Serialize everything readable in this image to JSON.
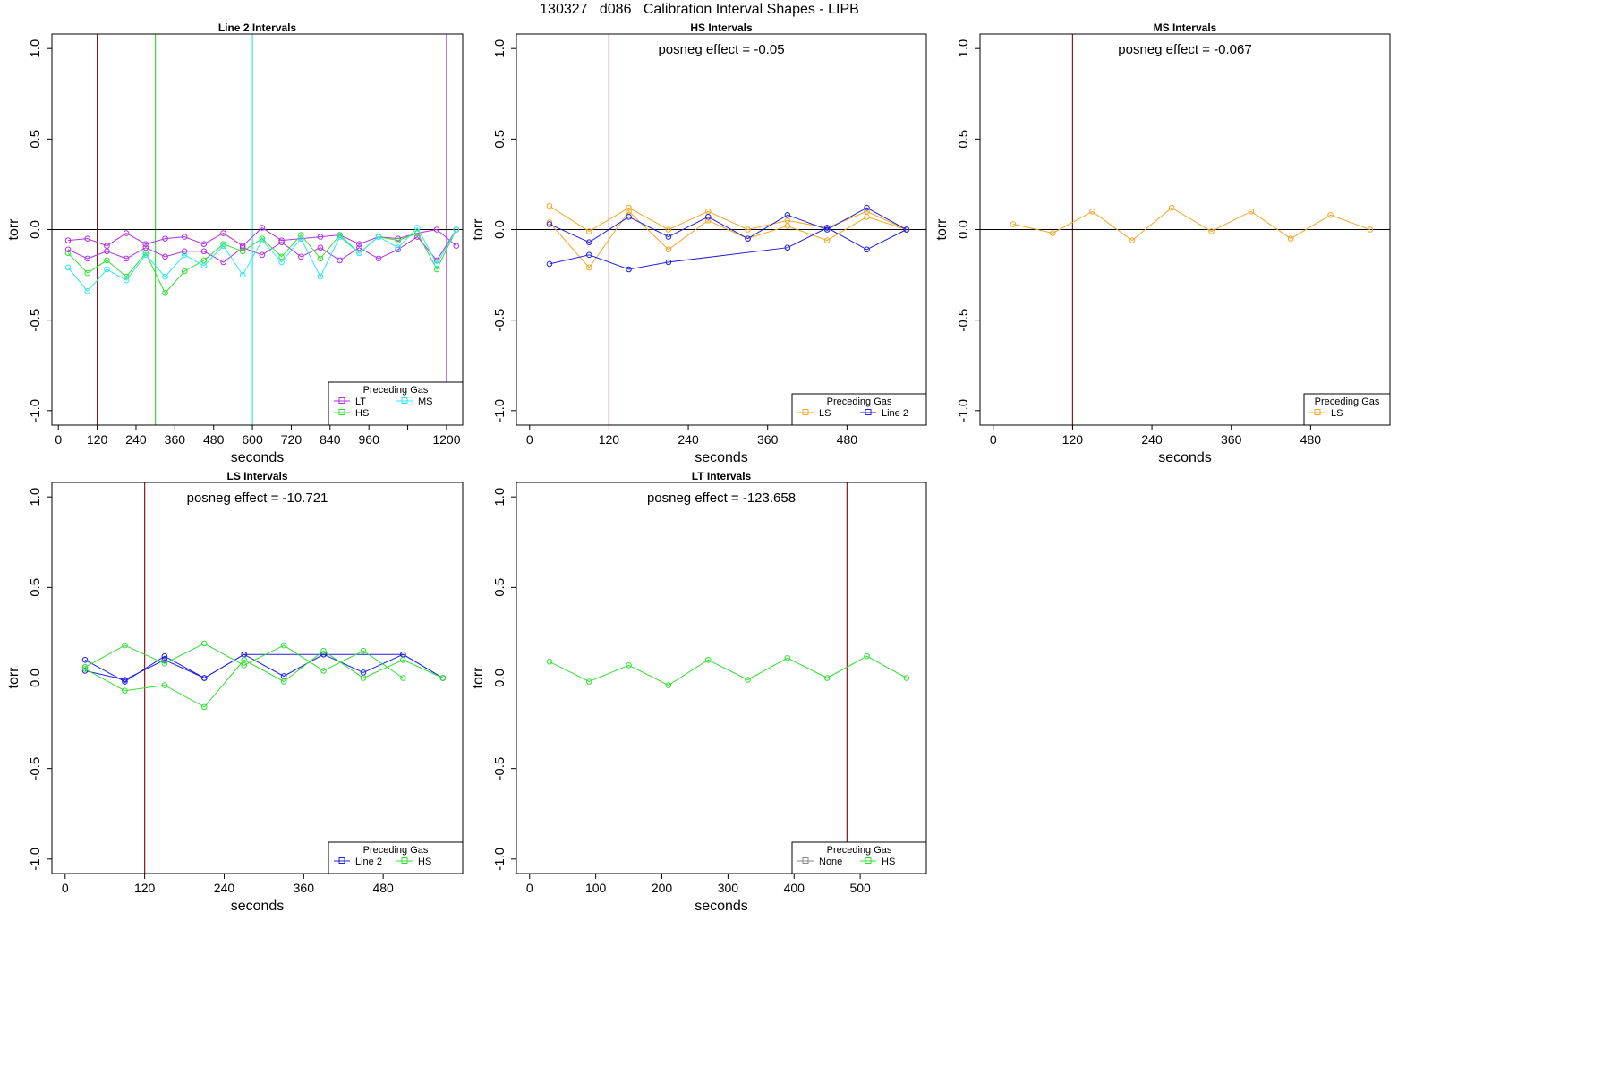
{
  "figure_title": "130327   d086   Calibration Interval Shapes - LIPB",
  "colors": {
    "LT": "#b030e0",
    "HS": "#30e030",
    "MS": "#30e8e8",
    "LS": "#f5a623",
    "Line 2": "#2020e0",
    "None": "#888888",
    "vline": "#8b1a1a",
    "zero": "#000000"
  },
  "chart_data": [
    {
      "type": "line",
      "title": "Line 2 Intervals",
      "annotation": "",
      "xlabel": "seconds",
      "ylabel": "torr",
      "xlim": [
        -20,
        1250
      ],
      "ylim": [
        -1.08,
        1.08
      ],
      "xticks": [
        0,
        120,
        240,
        360,
        480,
        600,
        720,
        840,
        960,
        1080,
        1200
      ],
      "xtick_labels": [
        "0",
        "120",
        "240",
        "360",
        "480",
        "600",
        "720",
        "840",
        "960",
        "",
        "1200"
      ],
      "yticks": [
        -1.0,
        -0.5,
        0.0,
        0.5,
        1.0
      ],
      "ytick_labels": [
        "-1.0",
        "-0.5",
        "0.0",
        "0.5",
        "1.0"
      ],
      "vlines": [
        {
          "x": 120,
          "color": "#8b1a1a"
        },
        {
          "x": 300,
          "color": "#30e030"
        },
        {
          "x": 600,
          "color": "#30e8e8"
        },
        {
          "x": 1200,
          "color": "#b030e0"
        }
      ],
      "legend": {
        "title": "Preceding Gas",
        "position": "bottom-right",
        "entries": [
          [
            "LT",
            "MS"
          ],
          [
            "HS"
          ]
        ]
      },
      "series": [
        {
          "name": "LT",
          "x": [
            30,
            90,
            150,
            210,
            270,
            330,
            390,
            450,
            510,
            570,
            630,
            690,
            750,
            810,
            870,
            930,
            990,
            1050,
            1110,
            1170,
            1230
          ],
          "y": [
            -0.06,
            -0.05,
            -0.09,
            -0.02,
            -0.08,
            -0.05,
            -0.04,
            -0.08,
            -0.02,
            -0.09,
            0.01,
            -0.06,
            -0.05,
            -0.04,
            -0.03,
            -0.08,
            -0.04,
            -0.05,
            -0.02,
            0.0,
            -0.09
          ]
        },
        {
          "name": "LT",
          "x": [
            30,
            90,
            150,
            210,
            270,
            330,
            390,
            450,
            510,
            570,
            630,
            690,
            750,
            810,
            870,
            930,
            990,
            1050,
            1110,
            1170,
            1230
          ],
          "y": [
            -0.11,
            -0.16,
            -0.12,
            -0.16,
            -0.1,
            -0.15,
            -0.12,
            -0.12,
            -0.18,
            -0.1,
            -0.14,
            -0.07,
            -0.15,
            -0.1,
            -0.17,
            -0.1,
            -0.16,
            -0.11,
            -0.04,
            -0.17,
            0.0
          ]
        },
        {
          "name": "HS",
          "x": [
            30,
            90,
            150,
            210,
            270,
            330,
            390,
            450,
            510,
            570,
            630,
            690,
            750,
            810,
            870,
            930,
            990,
            1050,
            1110,
            1170,
            1230
          ],
          "y": [
            -0.13,
            -0.24,
            -0.17,
            -0.26,
            -0.13,
            -0.35,
            -0.23,
            -0.17,
            -0.08,
            -0.12,
            -0.05,
            -0.15,
            -0.03,
            -0.16,
            -0.03,
            -0.13,
            -0.04,
            -0.06,
            -0.02,
            -0.22,
            0.0
          ]
        },
        {
          "name": "MS",
          "x": [
            30,
            90,
            150,
            210,
            270,
            330,
            390,
            450,
            510,
            570,
            630,
            690,
            750,
            810,
            870,
            930,
            990,
            1050,
            1110,
            1170,
            1230
          ],
          "y": [
            -0.21,
            -0.34,
            -0.22,
            -0.28,
            -0.14,
            -0.26,
            -0.14,
            -0.2,
            -0.09,
            -0.25,
            -0.06,
            -0.18,
            -0.05,
            -0.26,
            -0.04,
            -0.13,
            -0.04,
            -0.1,
            0.01,
            -0.19,
            0.0
          ]
        }
      ]
    },
    {
      "type": "line",
      "title": "HS Intervals",
      "annotation": "posneg effect = -0.05",
      "xlabel": "seconds",
      "ylabel": "torr",
      "xlim": [
        -20,
        600
      ],
      "ylim": [
        -1.08,
        1.08
      ],
      "xticks": [
        0,
        120,
        240,
        360,
        480
      ],
      "xtick_labels": [
        "0",
        "120",
        "240",
        "360",
        "480"
      ],
      "yticks": [
        -1.0,
        -0.5,
        0.0,
        0.5,
        1.0
      ],
      "ytick_labels": [
        "-1.0",
        "-0.5",
        "0.0",
        "0.5",
        "1.0"
      ],
      "vlines": [
        {
          "x": 120,
          "color": "#8b1a1a"
        }
      ],
      "legend": {
        "title": "Preceding Gas",
        "position": "bottom-right",
        "entries": [
          [
            "LS",
            "Line 2"
          ]
        ]
      },
      "series": [
        {
          "name": "LS",
          "x": [
            30,
            90,
            150,
            210,
            270,
            330,
            390,
            450,
            510,
            570
          ],
          "y": [
            0.13,
            -0.01,
            0.12,
            0.0,
            0.1,
            0.0,
            0.05,
            0.01,
            0.1,
            0.0
          ]
        },
        {
          "name": "LS",
          "x": [
            30,
            90,
            150,
            210,
            270,
            330,
            390,
            450,
            510,
            570
          ],
          "y": [
            0.04,
            -0.21,
            0.1,
            -0.11,
            0.05,
            -0.05,
            0.02,
            -0.06,
            0.07,
            0.0
          ]
        },
        {
          "name": "Line 2",
          "x": [
            30,
            90,
            150,
            210,
            270,
            330,
            390,
            450,
            510,
            570
          ],
          "y": [
            0.03,
            -0.07,
            0.07,
            -0.04,
            0.07,
            -0.05,
            0.08,
            0.0,
            0.12,
            0.0
          ]
        },
        {
          "name": "Line 2",
          "x": [
            30,
            90,
            150,
            210,
            390,
            450,
            510,
            570
          ],
          "y": [
            -0.19,
            -0.14,
            -0.22,
            -0.18,
            -0.1,
            0.01,
            -0.11,
            0.0
          ]
        }
      ]
    },
    {
      "type": "line",
      "title": "MS Intervals",
      "annotation": "posneg effect = -0.067",
      "xlabel": "seconds",
      "ylabel": "torr",
      "xlim": [
        -20,
        600
      ],
      "ylim": [
        -1.08,
        1.08
      ],
      "xticks": [
        0,
        120,
        240,
        360,
        480
      ],
      "xtick_labels": [
        "0",
        "120",
        "240",
        "360",
        "480"
      ],
      "yticks": [
        -1.0,
        -0.5,
        0.0,
        0.5,
        1.0
      ],
      "ytick_labels": [
        "-1.0",
        "-0.5",
        "0.0",
        "0.5",
        "1.0"
      ],
      "vlines": [
        {
          "x": 120,
          "color": "#8b1a1a"
        }
      ],
      "legend": {
        "title": "Preceding Gas",
        "position": "bottom-right",
        "entries": [
          [
            "LS"
          ]
        ]
      },
      "series": [
        {
          "name": "LS",
          "x": [
            30,
            90,
            150,
            210,
            270,
            330,
            390,
            450,
            510,
            570
          ],
          "y": [
            0.03,
            -0.02,
            0.1,
            -0.06,
            0.12,
            -0.01,
            0.1,
            -0.05,
            0.08,
            0.0
          ]
        }
      ]
    },
    {
      "type": "line",
      "title": "LS Intervals",
      "annotation": "posneg effect = -10.721",
      "xlabel": "seconds",
      "ylabel": "torr",
      "xlim": [
        -20,
        600
      ],
      "ylim": [
        -1.08,
        1.08
      ],
      "xticks": [
        0,
        120,
        240,
        360,
        480
      ],
      "xtick_labels": [
        "0",
        "120",
        "240",
        "360",
        "480"
      ],
      "yticks": [
        -1.0,
        -0.5,
        0.0,
        0.5,
        1.0
      ],
      "ytick_labels": [
        "-1.0",
        "-0.5",
        "0.0",
        "0.5",
        "1.0"
      ],
      "vlines": [
        {
          "x": 120,
          "color": "#8b1a1a"
        }
      ],
      "legend": {
        "title": "Preceding Gas",
        "position": "bottom-right",
        "entries": [
          [
            "Line 2",
            "HS"
          ]
        ]
      },
      "series": [
        {
          "name": "Line 2",
          "x": [
            30,
            90,
            150,
            210,
            270,
            330,
            390,
            450,
            510,
            570
          ],
          "y": [
            0.1,
            -0.02,
            0.12,
            0.0,
            0.13,
            0.01,
            0.13,
            0.03,
            0.13,
            0.0
          ]
        },
        {
          "name": "Line 2",
          "x": [
            30,
            90,
            150,
            210,
            270,
            390,
            510,
            570
          ],
          "y": [
            0.04,
            -0.01,
            0.1,
            0.0,
            0.13,
            0.13,
            0.13,
            0.0
          ]
        },
        {
          "name": "HS",
          "x": [
            30,
            90,
            150,
            210,
            270,
            330,
            390,
            450,
            510,
            570
          ],
          "y": [
            0.06,
            0.18,
            0.08,
            0.19,
            0.07,
            0.18,
            0.04,
            0.15,
            0.0,
            0.0
          ]
        },
        {
          "name": "HS",
          "x": [
            30,
            90,
            150,
            210,
            270,
            330,
            390,
            450,
            510,
            570
          ],
          "y": [
            0.05,
            -0.07,
            -0.04,
            -0.16,
            0.1,
            -0.02,
            0.15,
            0.0,
            0.1,
            0.0
          ]
        }
      ]
    },
    {
      "type": "line",
      "title": "LT Intervals",
      "annotation": "posneg effect = -123.658",
      "xlabel": "seconds",
      "ylabel": "torr",
      "xlim": [
        -20,
        600
      ],
      "ylim": [
        -1.08,
        1.08
      ],
      "xticks": [
        0,
        100,
        200,
        300,
        400,
        500
      ],
      "xtick_labels": [
        "0",
        "100",
        "200",
        "300",
        "400",
        "500"
      ],
      "yticks": [
        -1.0,
        -0.5,
        0.0,
        0.5,
        1.0
      ],
      "ytick_labels": [
        "-1.0",
        "-0.5",
        "0.0",
        "0.5",
        "1.0"
      ],
      "vlines": [
        {
          "x": 480,
          "color": "#8b1a1a"
        }
      ],
      "legend": {
        "title": "Preceding Gas",
        "position": "bottom-right",
        "entries": [
          [
            "None",
            "HS"
          ]
        ]
      },
      "series": [
        {
          "name": "HS",
          "x": [
            30,
            90,
            150,
            210,
            270,
            330,
            390,
            450,
            510,
            570
          ],
          "y": [
            0.09,
            -0.02,
            0.07,
            -0.04,
            0.1,
            -0.01,
            0.11,
            0.0,
            0.12,
            0.0
          ]
        }
      ]
    }
  ]
}
